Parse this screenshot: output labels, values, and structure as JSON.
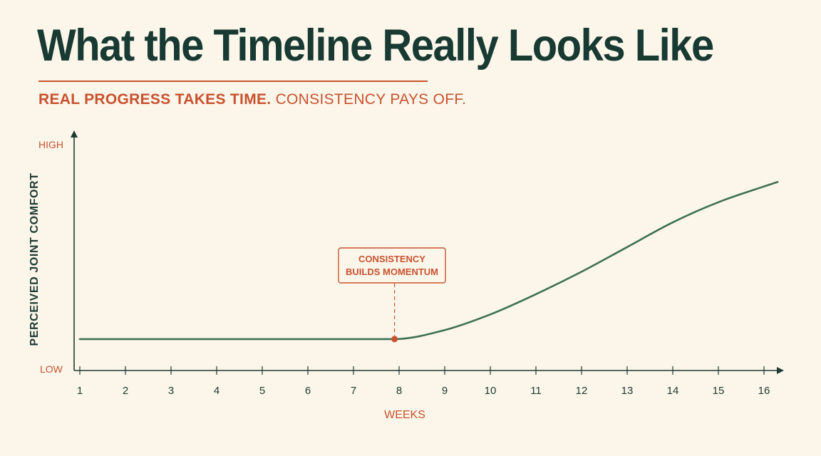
{
  "header": {
    "title": "What the Timeline Really Looks Like",
    "subtitle_strong": "REAL PROGRESS TAKES TIME.",
    "subtitle_light": "CONSISTENCY PAYS OFF."
  },
  "colors": {
    "title": "#183a33",
    "accent": "#c8522e",
    "line": "#3e7055",
    "axis": "#1e3a33",
    "background": "#fcf6ea"
  },
  "chart_data": {
    "type": "line",
    "xlabel": "WEEKS",
    "ylabel": "PERCEIVED JOINT COMFORT",
    "y_tick_labels": [
      "HIGH",
      "LOW"
    ],
    "x": [
      1,
      2,
      3,
      4,
      5,
      6,
      7,
      7.9,
      9,
      10,
      11,
      12,
      13,
      14,
      15,
      16,
      16.3
    ],
    "series": [
      {
        "values": [
          0.14,
          0.14,
          0.14,
          0.14,
          0.14,
          0.14,
          0.14,
          0.14,
          0.18,
          0.25,
          0.34,
          0.44,
          0.55,
          0.66,
          0.75,
          0.82,
          0.84
        ]
      }
    ],
    "xlim": [
      1,
      16.3
    ],
    "ylim": [
      0,
      1
    ],
    "x_ticks": [
      1,
      2,
      3,
      4,
      5,
      6,
      7,
      8,
      9,
      10,
      11,
      12,
      13,
      14,
      15,
      16
    ],
    "grid": false,
    "annotation": {
      "lines": [
        "CONSISTENCY",
        "BUILDS MOMENTUM"
      ],
      "x": 7.9,
      "y": 0.14
    }
  }
}
